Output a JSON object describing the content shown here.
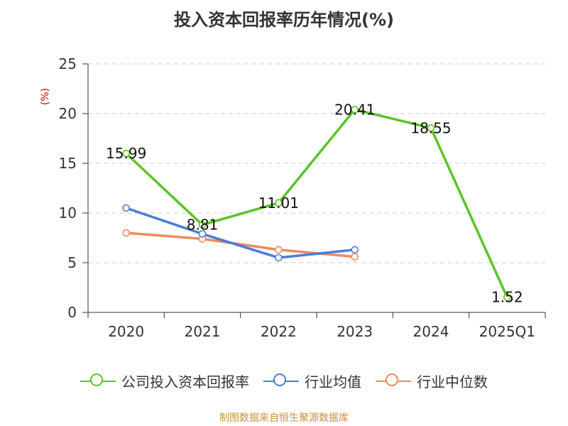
{
  "chart_data": {
    "type": "line",
    "title": "投入资本回报率历年情况(%)",
    "ylabel": "(%)",
    "xlabel": "",
    "categories": [
      "2020",
      "2021",
      "2022",
      "2023",
      "2024",
      "2025Q1"
    ],
    "ylim": [
      0,
      25
    ],
    "yticks": [
      0,
      5,
      10,
      15,
      20,
      25
    ],
    "grid": true,
    "legend_position": "bottom",
    "series": [
      {
        "name": "公司投入资本回报率",
        "color": "#5ac427",
        "values": [
          15.99,
          8.81,
          11.01,
          20.41,
          18.55,
          1.52
        ],
        "labels": [
          "15.99",
          "8.81",
          "11.01",
          "20.41",
          "18.55",
          "1.52"
        ]
      },
      {
        "name": "行业均值",
        "color": "#4a7ed8",
        "values": [
          10.5,
          7.9,
          5.5,
          6.3,
          null,
          null
        ]
      },
      {
        "name": "行业中位数",
        "color": "#f08a5d",
        "values": [
          8.0,
          7.4,
          6.3,
          5.6,
          null,
          null
        ]
      }
    ]
  },
  "source": "制图数据来自恒生聚源数据库"
}
